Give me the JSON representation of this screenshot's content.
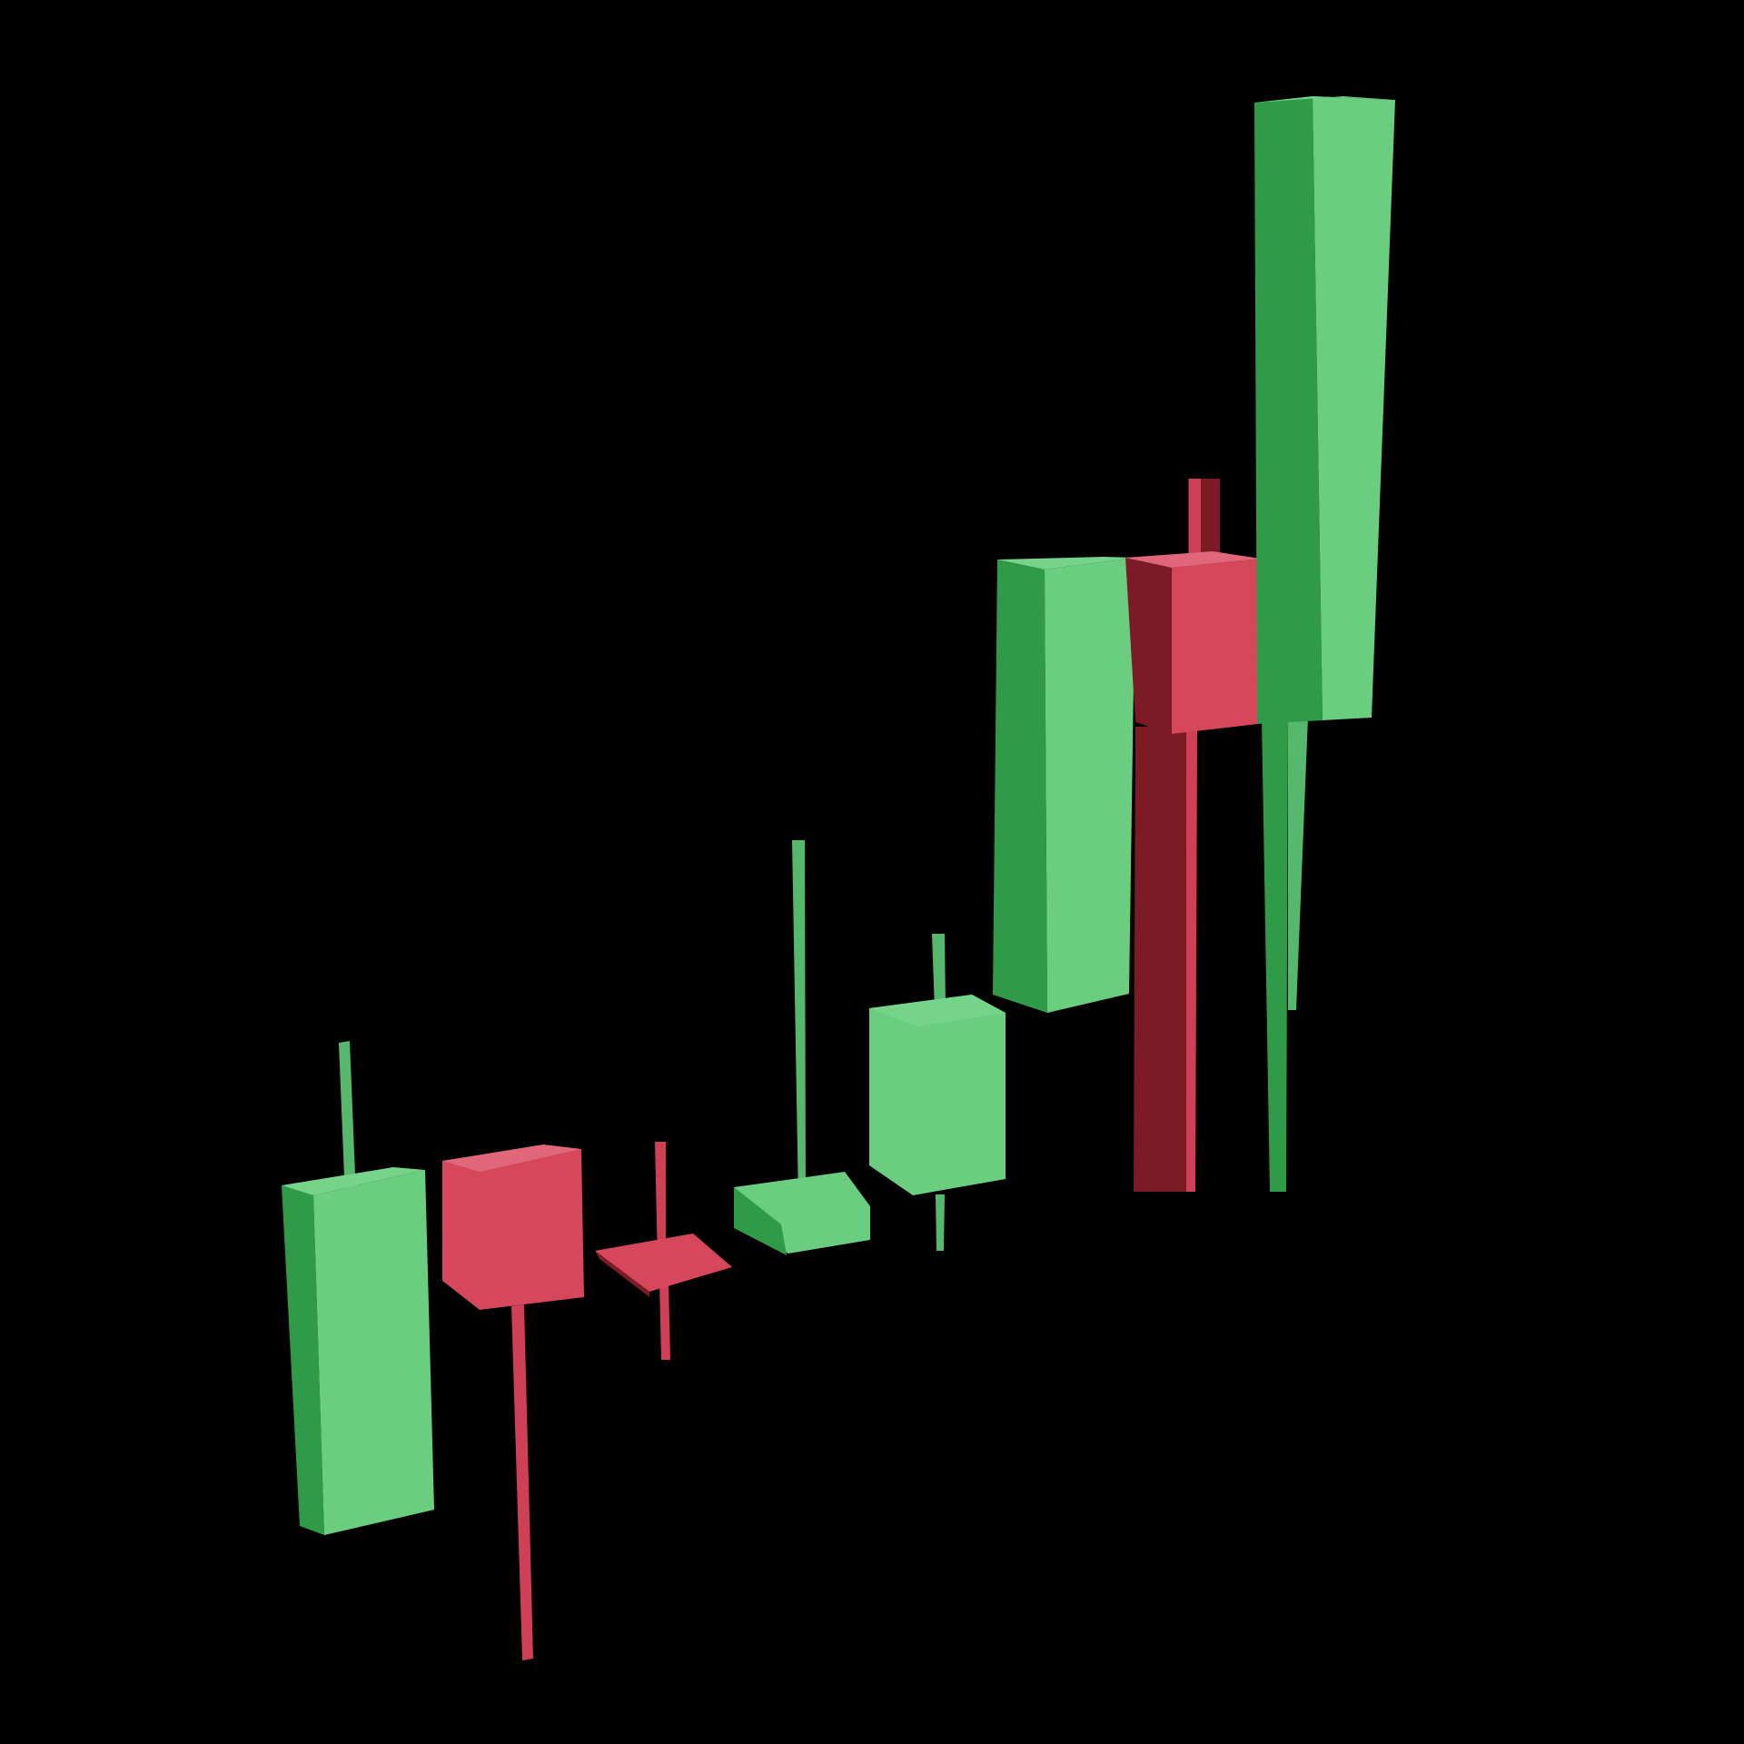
{
  "scene": {
    "subject": "3d-candlestick-illustration",
    "background_color": "#000000",
    "candle_count": 8
  },
  "palette": {
    "bull": {
      "front": "#6acd80",
      "side": "#2f9a47",
      "top": "#75d48a",
      "wick": "#56b86d"
    },
    "bear": {
      "front": "#d6475c",
      "side": "#7c1a25",
      "top": "#e0677a",
      "wick": "#cf3f55"
    }
  },
  "candles": [
    {
      "index": 1,
      "direction": "up",
      "open": 2.6,
      "close": 3.9,
      "high": 4.5,
      "low": 2.5
    },
    {
      "index": 2,
      "direction": "down",
      "open": 4.0,
      "close": 3.3,
      "high": 4.0,
      "low": 1.0
    },
    {
      "index": 3,
      "direction": "down",
      "open": 3.3,
      "close": 3.2,
      "high": 3.9,
      "low": 2.7
    },
    {
      "index": 4,
      "direction": "up",
      "open": 3.2,
      "close": 3.5,
      "high": 5.5,
      "low": 3.2
    },
    {
      "index": 5,
      "direction": "up",
      "open": 3.5,
      "close": 4.3,
      "high": 4.8,
      "low": 3.3
    },
    {
      "index": 6,
      "direction": "up",
      "open": 4.3,
      "close": 6.2,
      "high": 6.2,
      "low": 4.3
    },
    {
      "index": 7,
      "direction": "down",
      "open": 6.2,
      "close": 5.5,
      "high": 6.5,
      "low": 4.8
    },
    {
      "index": 8,
      "direction": "up",
      "open": 5.5,
      "close": 8.0,
      "high": 8.0,
      "low": 4.3
    }
  ]
}
